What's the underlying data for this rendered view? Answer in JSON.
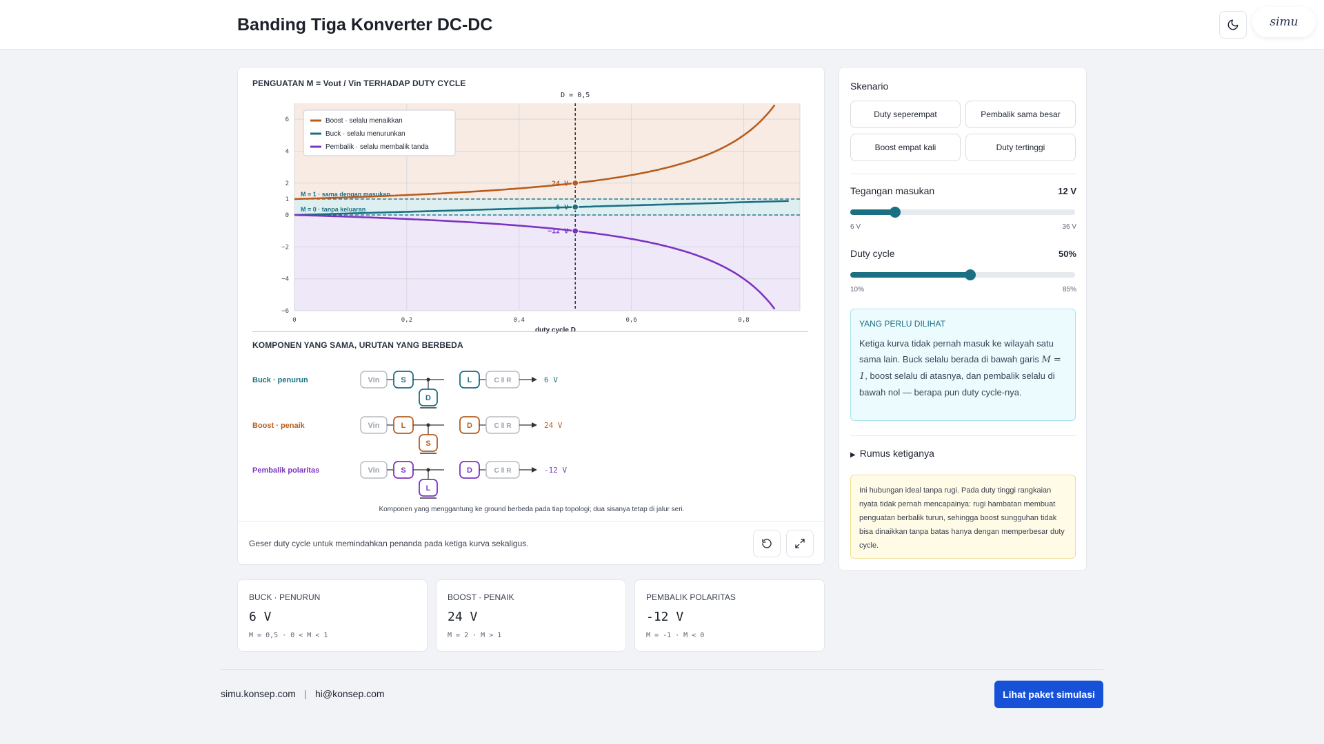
{
  "header": {
    "title": "Banding Tiga Konverter DC-DC",
    "logo_text": "simu"
  },
  "chart": {
    "section_title": "PENGUATAN M = Vout / Vin TERHADAP DUTY CYCLE",
    "marker_label": "D = 0,5",
    "ref_line_one": "M = 1 · sama dengan masukan",
    "ref_line_zero": "M = 0 · tanpa keluaran"
  },
  "chart_data": {
    "type": "line",
    "xlabel": "duty cycle D",
    "ylabel": "",
    "xlim": [
      0,
      0.9
    ],
    "ylim": [
      -6,
      7
    ],
    "x_ticks": [
      "0",
      "0,2",
      "0,4",
      "0,6",
      "0,8"
    ],
    "x_tick_values": [
      0,
      0.2,
      0.4,
      0.6,
      0.8
    ],
    "y_ticks": [
      "6",
      "4",
      "2",
      "1",
      "0",
      "−2",
      "−4",
      "−6"
    ],
    "y_tick_values": [
      6,
      4,
      2,
      1,
      0,
      -2,
      -4,
      -6
    ],
    "grid": true,
    "legend_placement": "top-left",
    "marker_x": 0.5,
    "series": [
      {
        "name": "Boost · selalu menaikkan",
        "color": "#b85c1e",
        "formula": "1/(1-D)",
        "x_range": [
          0,
          0.855
        ],
        "marker_label": "24 V",
        "marker_y": 2
      },
      {
        "name": "Buck · selalu menurunkan",
        "color": "#1a6f82",
        "formula": "D",
        "x_range": [
          0,
          0.88
        ],
        "marker_label": "6 V",
        "marker_y": 0.5
      },
      {
        "name": "Pembalik · selalu membalik tanda",
        "color": "#7b34c0",
        "formula": "-D/(1-D)",
        "x_range": [
          0,
          0.855
        ],
        "marker_label": "−12 V",
        "marker_y": -1
      }
    ]
  },
  "topology": {
    "section_title": "KOMPONEN YANG SAMA, URUTAN YANG BERBEDA",
    "rows": [
      {
        "label": "Buck · penurun",
        "color": "#1a6f82",
        "series": "S",
        "shunt": "D",
        "after": "L",
        "output": "6 V"
      },
      {
        "label": "Boost · penaik",
        "color": "#b85c1e",
        "series": "L",
        "shunt": "S",
        "after": "D",
        "output": "24 V"
      },
      {
        "label": "Pembalik polaritas",
        "color": "#7b34c0",
        "series": "S",
        "shunt": "L",
        "after": "D",
        "output": "-12 V"
      }
    ],
    "vin_label": "Vin",
    "load_label": "C ǁ R",
    "note": "Komponen yang menggantung ke ground berbeda pada tiap topologi; dua sisanya tetap di jalur seri."
  },
  "footer_hint": "Geser duty cycle untuk memindahkan penanda pada ketiga kurva sekaligus.",
  "sidebar": {
    "scenario_title": "Skenario",
    "scenarios": [
      "Duty seperempat",
      "Pembalik sama besar",
      "Boost empat kali",
      "Duty tertinggi"
    ],
    "vin": {
      "label": "Tegangan masukan",
      "value": "12 V",
      "min": "6 V",
      "max": "36 V",
      "fraction": 0.2
    },
    "duty": {
      "label": "Duty cycle",
      "value": "50%",
      "min": "10%",
      "max": "85%",
      "fraction": 0.533
    },
    "info_title": "YANG PERLU DILIHAT",
    "info_text_1": "Ketiga kurva tidak pernah masuk ke wilayah satu sama lain. Buck selalu berada di bawah garis ",
    "info_math": "M = 1",
    "info_text_2": ", boost selalu di atasnya, dan pembalik selalu di bawah nol — berapa pun duty cycle-nya.",
    "formulas_label": "Rumus ketiganya",
    "warning": "Ini hubungan ideal tanpa rugi. Pada duty tinggi rangkaian nyata tidak pernah mencapainya: rugi hambatan membuat penguatan berbalik turun, sehingga boost sungguhan tidak bisa dinaikkan tanpa batas hanya dengan memperbesar duty cycle."
  },
  "stats": [
    {
      "label": "BUCK · PENURUN",
      "value": "6 V",
      "sub": "M = 0,5 · 0 < M < 1"
    },
    {
      "label": "BOOST · PENAIK",
      "value": "24 V",
      "sub": "M = 2 · M > 1"
    },
    {
      "label": "PEMBALIK POLARITAS",
      "value": "-12 V",
      "sub": "M = -1 · M < 0"
    }
  ],
  "footer": {
    "site": "simu.konsep.com",
    "separator": "|",
    "email": "hi@konsep.com",
    "cta": "Lihat paket simulasi"
  }
}
